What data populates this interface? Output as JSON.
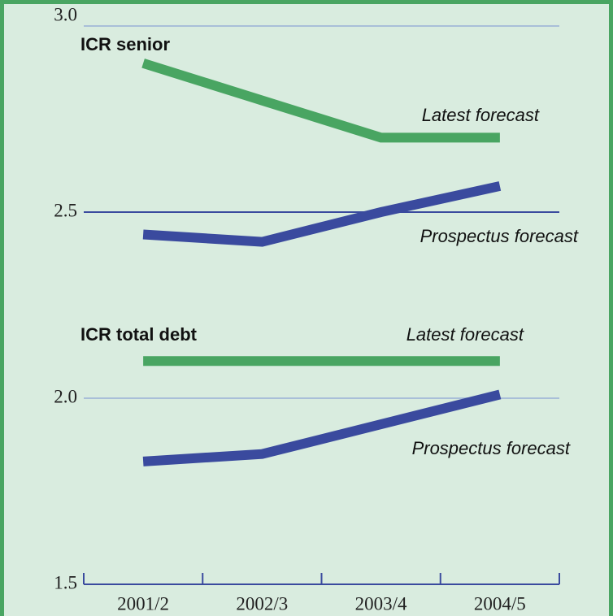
{
  "chart_data": {
    "type": "line",
    "categories": [
      "2001/2",
      "2002/3",
      "2003/4",
      "2004/5"
    ],
    "series": [
      {
        "name": "Latest forecast",
        "color": "#49a562",
        "values": [
          2.9,
          2.8,
          2.7,
          2.7
        ]
      },
      {
        "name": "Prospectus forecast",
        "color": "#3a4a9e",
        "values": [
          2.44,
          2.42,
          2.5,
          2.57
        ]
      },
      {
        "name": "Latest forecast",
        "color": "#49a562",
        "values": [
          2.1,
          2.1,
          2.1,
          2.1
        ]
      },
      {
        "name": "Prospectus forecast",
        "color": "#3a4a9e",
        "values": [
          1.83,
          1.85,
          1.93,
          2.01
        ]
      }
    ],
    "annotations": [
      "ICR senior",
      "ICR total debt"
    ],
    "ylim": [
      1.5,
      3.0
    ],
    "yticks": [
      {
        "value": 1.5,
        "label": "1.5"
      },
      {
        "value": 2,
        "label": "2.0"
      },
      {
        "value": 2.5,
        "label": "2.5"
      },
      {
        "value": 3,
        "label": "3.0"
      }
    ],
    "grid": true
  }
}
